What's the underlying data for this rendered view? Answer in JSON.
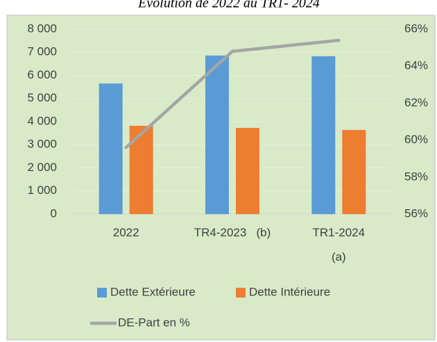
{
  "chart_data": {
    "type": "bar",
    "title": "Evolution de 2022 au TR1- 2024",
    "categories": [
      "2022",
      "TR4-2023   (b)",
      "TR1-2024\n(a)"
    ],
    "series": [
      {
        "name": "Dette Extérieure",
        "color": "#5b9bd5",
        "values": [
          5650,
          6860,
          6830
        ]
      },
      {
        "name": "Dette Intérieure",
        "color": "#ed7d31",
        "values": [
          3820,
          3730,
          3640
        ]
      },
      {
        "name": "DE-Part en %",
        "color": "#a5a5a5",
        "type": "line",
        "axis": "y2",
        "values": [
          59.6,
          64.8,
          65.4
        ]
      }
    ],
    "ylim": [
      0,
      8000
    ],
    "yticks": [
      {
        "value": 0,
        "label": "0"
      },
      {
        "value": 1000,
        "label": "1 000"
      },
      {
        "value": 2000,
        "label": "2 000"
      },
      {
        "value": 3000,
        "label": "3 000"
      },
      {
        "value": 4000,
        "label": "4 000"
      },
      {
        "value": 5000,
        "label": "5 000"
      },
      {
        "value": 6000,
        "label": "6 000"
      },
      {
        "value": 7000,
        "label": "7 000"
      },
      {
        "value": 8000,
        "label": "8 000"
      }
    ],
    "y2lim": [
      56,
      66
    ],
    "y2ticks": [
      {
        "value": 56,
        "label": "56%"
      },
      {
        "value": 58,
        "label": "58%"
      },
      {
        "value": 60,
        "label": "60%"
      },
      {
        "value": 62,
        "label": "62%"
      },
      {
        "value": 64,
        "label": "64%"
      },
      {
        "value": 66,
        "label": "66%"
      }
    ],
    "grid": true,
    "legend": "bottom",
    "background": "#d8eac8"
  }
}
